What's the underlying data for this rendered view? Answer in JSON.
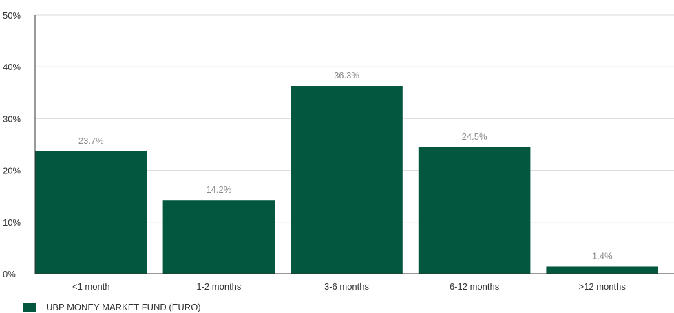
{
  "chart_data": {
    "type": "bar",
    "categories": [
      "<1 month",
      "1-2 months",
      "3-6 months",
      "6-12 months",
      ">12 months"
    ],
    "series": [
      {
        "name": "UBP MONEY MARKET FUND (EURO)",
        "values": [
          23.7,
          14.2,
          36.3,
          24.5,
          1.4
        ]
      }
    ],
    "data_labels": [
      "23.7%",
      "14.2%",
      "36.3%",
      "24.5%",
      "1.4%"
    ],
    "y_ticks": [
      "0%",
      "10%",
      "20%",
      "30%",
      "40%",
      "50%"
    ],
    "y_tick_values": [
      0,
      10,
      20,
      30,
      40,
      50
    ],
    "ylim": [
      0,
      50
    ],
    "grid": true,
    "legend_position": "bottom-left",
    "colors": {
      "bar": "#03573f",
      "grid": "#d9d9d9",
      "axis": "#333333",
      "label": "#8a8a8a",
      "tick_text": "#333333"
    }
  }
}
